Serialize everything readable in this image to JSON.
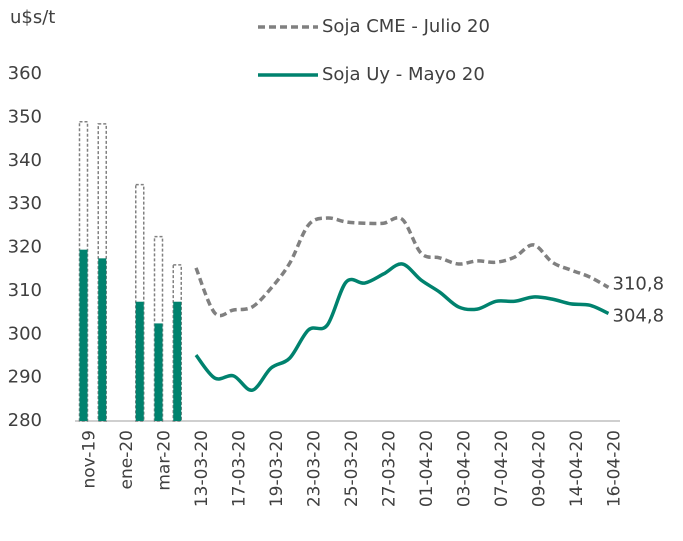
{
  "chart_data": {
    "type": "bar_line",
    "y_axis_label": "u$s/t",
    "categories": [
      "nov-19",
      null,
      "ene-20",
      null,
      "mar-20",
      null,
      "13-03-20",
      null,
      "17-03-20",
      null,
      "19-03-20",
      null,
      "23-03-20",
      null,
      "25-03-20",
      null,
      "27-03-20",
      null,
      "01-04-20",
      null,
      "03-04-20",
      null,
      "07-04-20",
      null,
      "09-04-20",
      null,
      "14-04-20",
      null,
      "16-04-20"
    ],
    "series": [
      {
        "name": "Soja CME - Julio 20",
        "color": "#808080",
        "dash": true,
        "bar_values": [
          349,
          348.5,
          null,
          334.5,
          322.5,
          316,
          null,
          null,
          null,
          null,
          null,
          null,
          null,
          null,
          null,
          null,
          null,
          null,
          null,
          null,
          null,
          null,
          null,
          null,
          null,
          null,
          null,
          null,
          null
        ],
        "values": [
          null,
          null,
          null,
          null,
          null,
          null,
          315.3,
          304.9,
          305.6,
          306.3,
          310.6,
          316.4,
          325.2,
          326.8,
          325.9,
          325.6,
          325.6,
          326.5,
          318.7,
          317.6,
          316.2,
          316.9,
          316.6,
          317.8,
          320.6,
          316.6,
          314.8,
          313.2,
          310.8
        ],
        "value_labels": [
          null,
          null,
          null,
          null,
          null,
          null,
          null,
          null,
          null,
          null,
          null,
          null,
          null,
          null,
          null,
          null,
          null,
          null,
          null,
          null,
          null,
          null,
          null,
          null,
          null,
          null,
          null,
          null,
          "310,8"
        ]
      },
      {
        "name": "Soja Uy - Mayo 20",
        "color": "#00826e",
        "dash": false,
        "bar_values": [
          319.5,
          317.5,
          null,
          307.5,
          302.5,
          307.5,
          null,
          null,
          null,
          null,
          null,
          null,
          null,
          null,
          null,
          null,
          null,
          null,
          null,
          null,
          null,
          null,
          null,
          null,
          null,
          null,
          null,
          null,
          null
        ],
        "values": [
          null,
          null,
          null,
          null,
          null,
          null,
          295.2,
          289.9,
          290.4,
          287.1,
          292.2,
          294.5,
          301.0,
          302.1,
          312.0,
          311.8,
          313.9,
          316.2,
          312.5,
          309.7,
          306.3,
          305.8,
          307.6,
          307.6,
          308.6,
          308.1,
          307.0,
          306.7,
          304.8
        ],
        "value_labels": [
          null,
          null,
          null,
          null,
          null,
          null,
          null,
          null,
          null,
          null,
          null,
          null,
          null,
          null,
          null,
          null,
          null,
          null,
          null,
          null,
          null,
          null,
          null,
          null,
          null,
          null,
          null,
          null,
          "304,8"
        ]
      }
    ],
    "ylim": [
      280,
      360
    ],
    "yticks": [
      280,
      290,
      300,
      310,
      320,
      330,
      340,
      350,
      360
    ],
    "grid": false
  }
}
